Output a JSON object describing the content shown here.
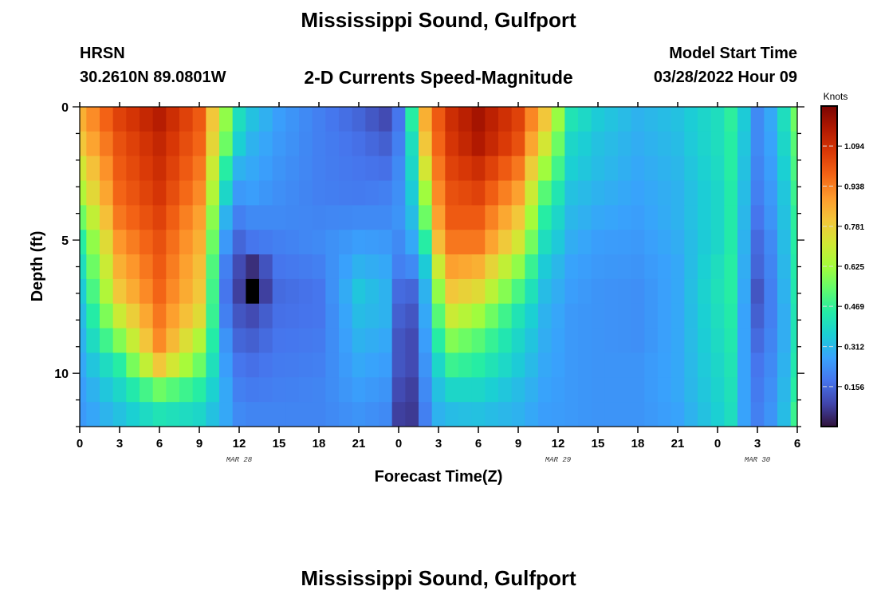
{
  "header": {
    "title": "Mississippi Sound, Gulfport",
    "station": "HRSN",
    "coords": "30.2610N  89.0801W",
    "plot_title": "2-D Currents Speed-Magnitude",
    "start_label": "Model Start Time",
    "start_value": "03/28/2022 Hour 09"
  },
  "footer": {
    "next_title": "Mississippi Sound, Gulfport"
  },
  "chart_data": {
    "type": "heatmap",
    "title": "2-D Currents Speed-Magnitude",
    "xlabel": "Forecast Time(Z)",
    "ylabel": "Depth (ft)",
    "x_unit": "hours from 00Z Mar 28",
    "xlim": [
      0,
      54
    ],
    "ylim": [
      12,
      0
    ],
    "x_ticks": [
      0,
      3,
      6,
      9,
      12,
      15,
      18,
      21,
      24,
      27,
      30,
      33,
      36,
      39,
      42,
      45,
      48,
      51,
      54
    ],
    "x_tick_labels": [
      "0",
      "3",
      "6",
      "9",
      "12",
      "15",
      "18",
      "21",
      "0",
      "3",
      "6",
      "9",
      "12",
      "15",
      "18",
      "21",
      "0",
      "3",
      "6"
    ],
    "date_labels": [
      {
        "label": "MAR 28",
        "x": 12
      },
      {
        "label": "MAR 29",
        "x": 36
      },
      {
        "label": "MAR 30",
        "x": 51
      }
    ],
    "y_ticks": [
      0,
      5,
      10
    ],
    "y_tick_labels": [
      "0",
      "5",
      "10"
    ],
    "colorbar": {
      "label": "Knots",
      "min": 0.0,
      "max": 1.25,
      "ticks": [
        1.094,
        0.938,
        0.781,
        0.625,
        0.469,
        0.312,
        0.156
      ],
      "tick_labels": [
        "1.094",
        "0.938",
        "0.781",
        "0.625",
        "0.469",
        "0.312",
        "0.156"
      ],
      "colormap": [
        "#30123b",
        "#4145ab",
        "#4675ed",
        "#39a2fc",
        "#1bcfd4",
        "#24eca6",
        "#61fc6c",
        "#a4fc3b",
        "#d1e834",
        "#f3c63a",
        "#fe9b2d",
        "#f36315",
        "#d93806",
        "#b11901",
        "#7a0402"
      ]
    },
    "depths": [
      0,
      1,
      2,
      3,
      4,
      5,
      6,
      7,
      8,
      9,
      10,
      11,
      12
    ],
    "times": [
      0,
      3,
      6,
      9,
      11,
      12,
      13,
      15,
      18,
      21,
      23,
      24,
      25,
      26,
      27,
      28,
      30,
      33,
      35,
      37,
      39,
      42,
      45,
      48,
      49,
      50,
      51,
      52,
      53,
      54
    ],
    "speed_knots": [
      [
        0.85,
        1.05,
        1.15,
        1.0,
        0.6,
        0.4,
        0.33,
        0.26,
        0.2,
        0.15,
        0.1,
        0.18,
        0.45,
        0.85,
        1.0,
        1.1,
        1.18,
        1.05,
        0.8,
        0.42,
        0.35,
        0.3,
        0.33,
        0.4,
        0.46,
        0.35,
        0.22,
        0.28,
        0.4,
        0.55
      ],
      [
        0.8,
        1.02,
        1.12,
        0.98,
        0.55,
        0.36,
        0.3,
        0.25,
        0.2,
        0.17,
        0.14,
        0.2,
        0.4,
        0.8,
        0.98,
        1.08,
        1.16,
        1.02,
        0.72,
        0.38,
        0.33,
        0.29,
        0.32,
        0.4,
        0.45,
        0.34,
        0.22,
        0.27,
        0.38,
        0.52
      ],
      [
        0.72,
        1.0,
        1.1,
        0.95,
        0.45,
        0.3,
        0.28,
        0.24,
        0.2,
        0.18,
        0.17,
        0.22,
        0.38,
        0.72,
        0.95,
        1.05,
        1.1,
        0.95,
        0.62,
        0.36,
        0.32,
        0.28,
        0.31,
        0.39,
        0.45,
        0.33,
        0.21,
        0.26,
        0.36,
        0.5
      ],
      [
        0.65,
        0.98,
        1.08,
        0.92,
        0.38,
        0.25,
        0.26,
        0.23,
        0.2,
        0.19,
        0.2,
        0.23,
        0.35,
        0.62,
        0.92,
        1.02,
        1.05,
        0.88,
        0.52,
        0.33,
        0.3,
        0.27,
        0.3,
        0.38,
        0.44,
        0.32,
        0.2,
        0.25,
        0.34,
        0.48
      ],
      [
        0.55,
        0.95,
        1.05,
        0.88,
        0.3,
        0.2,
        0.22,
        0.22,
        0.21,
        0.22,
        0.22,
        0.24,
        0.32,
        0.55,
        0.88,
        1.0,
        1.0,
        0.8,
        0.45,
        0.31,
        0.28,
        0.26,
        0.3,
        0.38,
        0.44,
        0.31,
        0.18,
        0.24,
        0.33,
        0.46
      ],
      [
        0.45,
        0.9,
        1.02,
        0.85,
        0.25,
        0.15,
        0.18,
        0.2,
        0.22,
        0.26,
        0.25,
        0.22,
        0.28,
        0.45,
        0.82,
        0.95,
        0.95,
        0.72,
        0.4,
        0.29,
        0.26,
        0.25,
        0.29,
        0.38,
        0.44,
        0.3,
        0.16,
        0.22,
        0.32,
        0.45
      ],
      [
        0.4,
        0.85,
        1.0,
        0.82,
        0.2,
        0.1,
        0.05,
        0.18,
        0.2,
        0.3,
        0.28,
        0.2,
        0.22,
        0.35,
        0.7,
        0.88,
        0.85,
        0.6,
        0.35,
        0.27,
        0.25,
        0.24,
        0.28,
        0.4,
        0.45,
        0.29,
        0.15,
        0.21,
        0.31,
        0.44
      ],
      [
        0.35,
        0.8,
        0.98,
        0.8,
        0.18,
        0.08,
        0.0,
        0.16,
        0.18,
        0.34,
        0.3,
        0.16,
        0.15,
        0.3,
        0.6,
        0.8,
        0.75,
        0.5,
        0.32,
        0.26,
        0.24,
        0.23,
        0.28,
        0.41,
        0.45,
        0.28,
        0.12,
        0.2,
        0.3,
        0.43
      ],
      [
        0.32,
        0.7,
        0.95,
        0.75,
        0.2,
        0.12,
        0.1,
        0.17,
        0.18,
        0.32,
        0.3,
        0.14,
        0.12,
        0.28,
        0.52,
        0.7,
        0.62,
        0.42,
        0.3,
        0.25,
        0.24,
        0.23,
        0.28,
        0.4,
        0.44,
        0.27,
        0.14,
        0.2,
        0.29,
        0.42
      ],
      [
        0.3,
        0.58,
        0.92,
        0.65,
        0.24,
        0.15,
        0.14,
        0.18,
        0.19,
        0.3,
        0.28,
        0.12,
        0.1,
        0.26,
        0.45,
        0.58,
        0.52,
        0.38,
        0.29,
        0.25,
        0.24,
        0.23,
        0.28,
        0.39,
        0.43,
        0.27,
        0.16,
        0.21,
        0.29,
        0.42
      ],
      [
        0.28,
        0.45,
        0.8,
        0.55,
        0.26,
        0.18,
        0.17,
        0.19,
        0.2,
        0.28,
        0.26,
        0.12,
        0.1,
        0.24,
        0.38,
        0.48,
        0.45,
        0.35,
        0.28,
        0.25,
        0.24,
        0.24,
        0.28,
        0.38,
        0.42,
        0.27,
        0.18,
        0.22,
        0.3,
        0.43
      ],
      [
        0.26,
        0.38,
        0.55,
        0.45,
        0.28,
        0.2,
        0.19,
        0.2,
        0.21,
        0.26,
        0.24,
        0.1,
        0.08,
        0.22,
        0.33,
        0.38,
        0.38,
        0.32,
        0.27,
        0.25,
        0.24,
        0.24,
        0.28,
        0.37,
        0.41,
        0.27,
        0.19,
        0.23,
        0.31,
        0.45
      ],
      [
        0.25,
        0.33,
        0.42,
        0.38,
        0.28,
        0.22,
        0.21,
        0.21,
        0.21,
        0.24,
        0.22,
        0.08,
        0.07,
        0.2,
        0.3,
        0.32,
        0.33,
        0.3,
        0.26,
        0.25,
        0.24,
        0.24,
        0.27,
        0.36,
        0.4,
        0.27,
        0.2,
        0.24,
        0.32,
        0.48
      ]
    ]
  }
}
